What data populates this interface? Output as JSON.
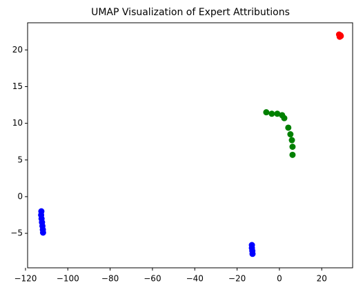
{
  "chart_data": {
    "type": "scatter",
    "title": "UMAP Visualization of Expert Attributions",
    "series": [
      {
        "color": "#0000ff",
        "x": [
          -112.5,
          -112.6,
          -112.4,
          -112.2,
          -112.0,
          -111.8,
          -111.7,
          -13.0,
          -13.0,
          -12.8,
          -12.7
        ],
        "y": [
          -2.0,
          -2.5,
          -3.0,
          -3.5,
          -4.0,
          -4.5,
          -4.9,
          -6.6,
          -7.0,
          -7.4,
          -7.8
        ]
      },
      {
        "color": "#008000",
        "x": [
          -6.2,
          -3.6,
          -1.0,
          1.3,
          2.3,
          4.2,
          5.2,
          5.9,
          6.2,
          6.2
        ],
        "y": [
          11.5,
          11.3,
          11.3,
          11.1,
          10.7,
          9.4,
          8.5,
          7.7,
          6.8,
          5.7
        ]
      },
      {
        "color": "#ff0000",
        "x": [
          28.2,
          28.5,
          28.8,
          29.0
        ],
        "y": [
          22.1,
          21.8,
          22.0,
          21.9
        ]
      }
    ],
    "xlim": [
      -119,
      34.6
    ],
    "ylim": [
      -9.7,
      23.7
    ],
    "xticks": [
      {
        "value": -120,
        "label": "−120"
      },
      {
        "value": -100,
        "label": "−100"
      },
      {
        "value": -80,
        "label": "−80"
      },
      {
        "value": -60,
        "label": "−60"
      },
      {
        "value": -40,
        "label": "−40"
      },
      {
        "value": -20,
        "label": "−20"
      },
      0,
      20
    ],
    "yticks": [
      {
        "value": -5,
        "label": "−5"
      },
      0,
      5,
      10,
      15,
      20
    ]
  }
}
